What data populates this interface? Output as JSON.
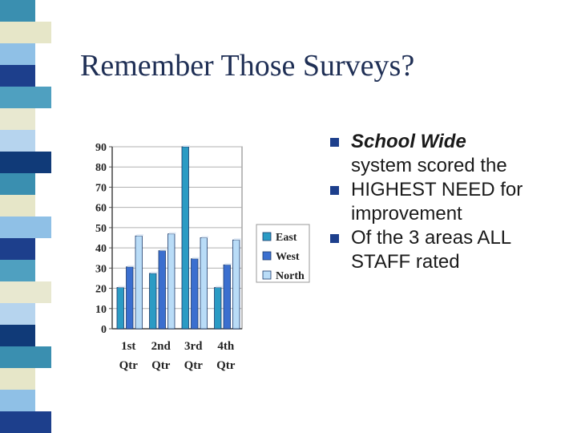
{
  "slide": {
    "title": "Remember Those Surveys?",
    "bullets": [
      {
        "lead": "School Wide",
        "line1_rest": "",
        "line2": "system scored the"
      },
      {
        "lead": "HIGHEST NEED for",
        "line2": "improvement"
      },
      {
        "lead": "Of the 3 areas ALL",
        "line2": "STAFF rated"
      }
    ],
    "strip_colors": [
      "#3a8fb0",
      "#1d3f8c",
      "#b6d4ee",
      "#e6e6c8",
      "#4fa0c0",
      "#103a78",
      "#8fc0e6",
      "#e8e8d0"
    ]
  },
  "chart_data": {
    "type": "bar",
    "categories_line1": [
      "1st",
      "2nd",
      "3rd",
      "4th"
    ],
    "categories_line2": [
      "Qtr",
      "Qtr",
      "Qtr",
      "Qtr"
    ],
    "series": [
      {
        "name": "East",
        "color": "#2b9bc4",
        "values": [
          20.4,
          27.4,
          90,
          20.4
        ]
      },
      {
        "name": "West",
        "color": "#3b6fcf",
        "values": [
          30.6,
          38.6,
          34.6,
          31.6
        ]
      },
      {
        "name": "North",
        "color": "#b9dcf7",
        "values": [
          45.9,
          46.9,
          45,
          43.9
        ]
      }
    ],
    "ylim": [
      0,
      90
    ],
    "yticks": [
      "0",
      "10",
      "20",
      "30",
      "40",
      "50",
      "60",
      "70",
      "80",
      "90"
    ],
    "legend_position": "right",
    "grid": true
  }
}
